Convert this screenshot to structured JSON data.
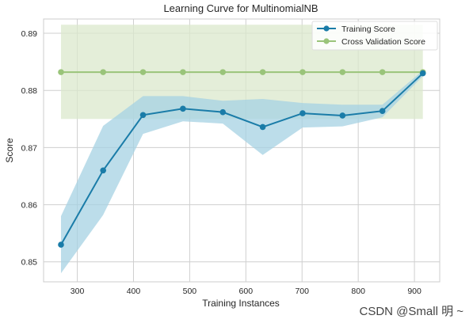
{
  "chart_data": {
    "type": "line",
    "title": "Learning Curve for MultinomialNB",
    "xlabel": "Training Instances",
    "ylabel": "Score",
    "xlim": [
      240,
      945
    ],
    "ylim": [
      0.8465,
      0.8925
    ],
    "xticks": [
      300,
      400,
      500,
      600,
      700,
      800,
      900
    ],
    "yticks": [
      0.85,
      0.86,
      0.87,
      0.88,
      0.89
    ],
    "ytick_labels": [
      "0.85",
      "0.86",
      "0.87",
      "0.88",
      "0.89"
    ],
    "grid": true,
    "legend_position": "top-right",
    "x": [
      271,
      346,
      417,
      488,
      559,
      630,
      701,
      772,
      843,
      915
    ],
    "series": [
      {
        "name": "Training Score",
        "color": "#1a7ca8",
        "band_color": "#a6d2e3",
        "values": [
          0.853,
          0.866,
          0.8757,
          0.8768,
          0.8762,
          0.8736,
          0.876,
          0.8756,
          0.8764,
          0.883
        ],
        "upper": [
          0.858,
          0.8738,
          0.879,
          0.879,
          0.8782,
          0.8785,
          0.8778,
          0.8775,
          0.8775,
          0.8835
        ],
        "lower": [
          0.848,
          0.8582,
          0.8724,
          0.8746,
          0.8742,
          0.8687,
          0.8735,
          0.8737,
          0.8753,
          0.8825
        ]
      },
      {
        "name": "Cross Validation Score",
        "color": "#9ac47a",
        "band_color": "#dbe8cc",
        "values": [
          0.8832,
          0.8832,
          0.8832,
          0.8832,
          0.8832,
          0.8832,
          0.8832,
          0.8832,
          0.8832,
          0.8832
        ],
        "upper": [
          0.8915,
          0.8915,
          0.8915,
          0.8915,
          0.8915,
          0.8915,
          0.8915,
          0.8915,
          0.8915,
          0.8915
        ],
        "lower": [
          0.875,
          0.875,
          0.875,
          0.875,
          0.875,
          0.875,
          0.875,
          0.875,
          0.875,
          0.875
        ]
      }
    ]
  },
  "watermark": "CSDN @Small  明 ~"
}
